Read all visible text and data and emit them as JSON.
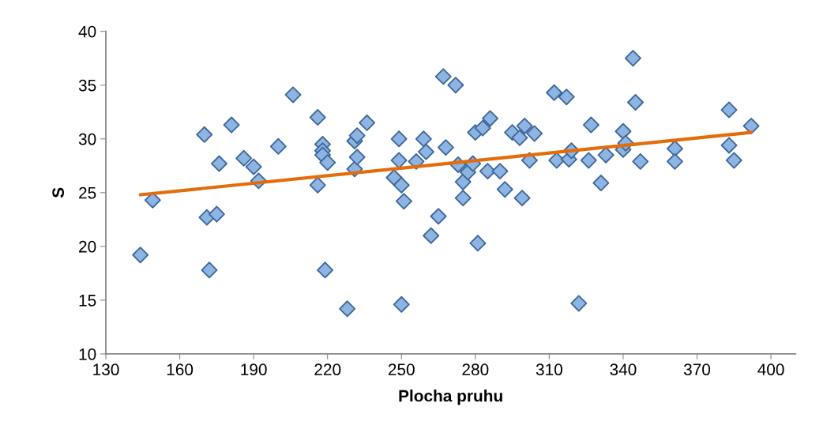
{
  "chart_data": {
    "type": "scatter",
    "xlabel": "Plocha pruhu",
    "ylabel": "S",
    "xlim": [
      130,
      410
    ],
    "ylim": [
      10,
      40
    ],
    "xticks": [
      130,
      160,
      190,
      220,
      250,
      280,
      310,
      340,
      370,
      400
    ],
    "yticks": [
      10,
      15,
      20,
      25,
      30,
      35,
      40
    ],
    "grid": false,
    "legend": false,
    "marker": "diamond",
    "series": [
      {
        "color": "#8db4e2",
        "x": [
          144,
          149,
          170,
          171,
          172,
          175,
          176,
          181,
          186,
          190,
          192,
          200,
          206,
          216,
          216,
          218,
          218,
          218,
          219,
          220,
          228,
          231,
          231,
          232,
          232,
          236,
          247,
          249,
          249,
          250,
          250,
          251,
          256,
          259,
          260,
          262,
          265,
          267,
          268,
          272,
          273,
          275,
          275,
          277,
          279,
          280,
          281,
          283,
          285,
          286,
          290,
          292,
          295,
          298,
          299,
          300,
          302,
          304,
          312,
          313,
          317,
          318,
          319,
          322,
          326,
          327,
          331,
          333,
          340,
          340,
          341,
          344,
          345,
          347,
          361,
          361,
          383,
          383,
          385,
          392
        ],
        "values": [
          19.2,
          24.3,
          30.4,
          22.7,
          17.8,
          23.0,
          27.7,
          31.3,
          28.2,
          27.4,
          26.1,
          29.3,
          34.1,
          32.0,
          25.7,
          29.5,
          28.9,
          28.5,
          17.8,
          27.8,
          14.2,
          29.8,
          27.2,
          30.3,
          28.3,
          31.5,
          26.4,
          28.0,
          30.0,
          25.7,
          14.6,
          24.2,
          27.9,
          30.0,
          28.8,
          21.0,
          22.8,
          35.8,
          29.2,
          35.0,
          27.6,
          26.0,
          24.5,
          26.9,
          27.7,
          30.6,
          20.3,
          31.0,
          27.0,
          31.9,
          27.0,
          25.3,
          30.6,
          30.1,
          24.5,
          31.2,
          28.0,
          30.5,
          34.3,
          28.0,
          33.9,
          28.1,
          28.9,
          14.7,
          28.0,
          31.3,
          25.9,
          28.5,
          30.7,
          29.0,
          29.6,
          37.5,
          33.4,
          27.9,
          29.1,
          27.9,
          32.7,
          29.4,
          28.0,
          31.2
        ]
      },
      {
        "type": "line",
        "color": "#e46c0a",
        "marker": "none",
        "x": [
          144,
          392
        ],
        "values": [
          24.8,
          30.6
        ]
      }
    ]
  }
}
